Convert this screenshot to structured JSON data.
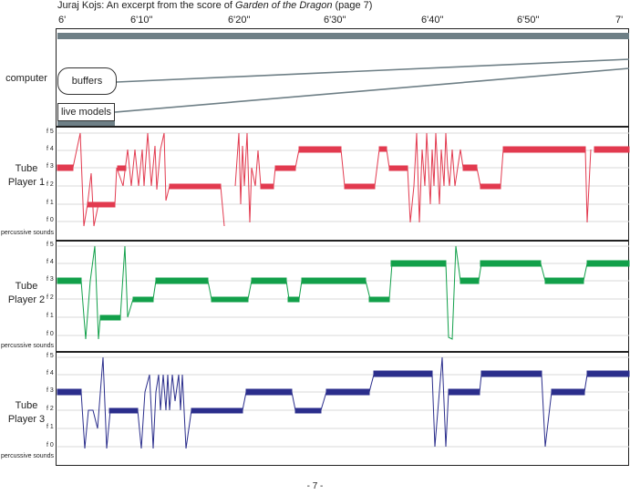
{
  "title": {
    "prefix": "Juraj Kojs: An excerpt from the score of ",
    "work": "Garden of the Dragon",
    "suffix": " (page 7)"
  },
  "timeline": [
    "6'",
    "6'10\"",
    "6'20\"",
    "6'30\"",
    "6'40\"",
    "6'50\"",
    "7'"
  ],
  "computer": {
    "label": "computer",
    "buffers": "buffers",
    "live_models": "live models"
  },
  "frequency_labels": [
    "f 5",
    "f 4",
    "f 3",
    "f 2",
    "f 1",
    "f 0"
  ],
  "percussive_label": "percussive sounds",
  "players": [
    {
      "line1": "Tube",
      "line2": "Player 1",
      "color": "#e23a4f"
    },
    {
      "line1": "Tube",
      "line2": "Player 2",
      "color": "#12a04a"
    },
    {
      "line1": "Tube",
      "line2": "Player 3",
      "color": "#2b2e8c"
    }
  ],
  "page_number": "- 7 -"
}
